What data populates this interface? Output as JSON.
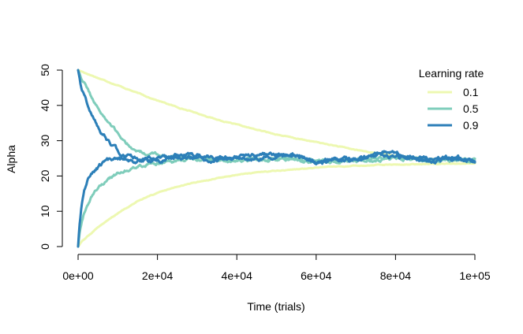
{
  "chart_data": {
    "type": "line",
    "title": "",
    "xlabel": "Time (trials)",
    "ylabel": "Alpha",
    "xlim": [
      0,
      100000
    ],
    "ylim": [
      0,
      50
    ],
    "x_ticks": [
      0,
      20000,
      40000,
      60000,
      80000,
      100000
    ],
    "x_tick_labels": [
      "0e+00",
      "2e+04",
      "4e+04",
      "6e+04",
      "8e+04",
      "1e+05"
    ],
    "y_ticks": [
      0,
      10,
      20,
      30,
      40,
      50
    ],
    "y_tick_labels": [
      "0",
      "10",
      "20",
      "30",
      "40",
      "50"
    ],
    "grid": false,
    "legend": {
      "title": "Learning rate",
      "position": "top-right",
      "entries": [
        {
          "label": "0.1",
          "color": "#edf8b1"
        },
        {
          "label": "0.5",
          "color": "#7fcdbb"
        },
        {
          "label": "0.9",
          "color": "#2c7fb8"
        }
      ]
    },
    "series": [
      {
        "name": "0.1",
        "color": "#edf8b1",
        "start": 50,
        "x": [
          0,
          5000,
          10000,
          15000,
          20000,
          25000,
          30000,
          35000,
          40000,
          45000,
          50000,
          55000,
          60000,
          65000,
          70000,
          75000,
          80000,
          85000,
          90000,
          95000,
          100000
        ],
        "values": [
          50,
          47.8,
          45.7,
          43.5,
          41.4,
          39.5,
          37.8,
          36.0,
          34.5,
          33.1,
          31.8,
          30.6,
          29.6,
          28.5,
          27.4,
          26.5,
          25.7,
          25.2,
          24.8,
          24.4,
          24.0
        ],
        "noise": 0.15
      },
      {
        "name": "0.1",
        "color": "#edf8b1",
        "start": 0,
        "x": [
          0,
          1000,
          3000,
          5000,
          7500,
          10000,
          15000,
          20000,
          25000,
          30000,
          35000,
          40000,
          45000,
          50000,
          55000,
          60000,
          65000,
          70000,
          75000,
          80000,
          85000,
          90000,
          95000,
          100000
        ],
        "values": [
          0,
          1.5,
          3.5,
          5.5,
          7.5,
          9.5,
          12.8,
          15.2,
          16.9,
          18.2,
          19.3,
          20.3,
          21.0,
          21.5,
          21.9,
          22.3,
          22.6,
          22.8,
          23.0,
          23.2,
          23.3,
          23.4,
          23.5,
          23.6
        ],
        "noise": 0.15
      },
      {
        "name": "0.5",
        "color": "#7fcdbb",
        "start": 50,
        "x": [
          0,
          1000,
          2000,
          4000,
          6000,
          8000,
          10000,
          12000,
          14000,
          16000,
          18000,
          20000,
          25000,
          30000,
          40000,
          50000,
          60000,
          70000,
          80000,
          90000,
          100000
        ],
        "values": [
          50,
          47.5,
          45.5,
          41.0,
          37.5,
          34.5,
          32.0,
          29.5,
          27.5,
          26.8,
          26.3,
          25.8,
          25.3,
          25.0,
          24.6,
          24.8,
          24.3,
          24.6,
          25.2,
          24.5,
          24.4
        ],
        "noise": 0.6
      },
      {
        "name": "0.5",
        "color": "#7fcdbb",
        "start": 0,
        "x": [
          0,
          500,
          1500,
          3000,
          5000,
          7500,
          10000,
          12500,
          15000,
          20000,
          25000,
          30000,
          40000,
          50000,
          60000,
          70000,
          80000,
          90000,
          100000
        ],
        "values": [
          0,
          5.0,
          9.5,
          13.5,
          16.5,
          19.0,
          20.8,
          22.0,
          22.8,
          23.6,
          24.2,
          24.6,
          24.5,
          24.7,
          24.0,
          24.5,
          25.0,
          24.3,
          24.2
        ],
        "noise": 0.6
      },
      {
        "name": "0.9",
        "color": "#2c7fb8",
        "start": 50,
        "x": [
          0,
          500,
          1000,
          2000,
          3000,
          4500,
          6000,
          8000,
          10000,
          12000,
          14000,
          17000,
          20000,
          25000,
          30000,
          35000,
          40000,
          45000,
          50000,
          55000,
          60000,
          65000,
          70000,
          75000,
          78000,
          82000,
          85000,
          90000,
          95000,
          100000
        ],
        "values": [
          50,
          47.0,
          44.5,
          41.5,
          38.5,
          35.0,
          32.0,
          29.0,
          27.0,
          25.8,
          25.3,
          24.6,
          24.9,
          25.4,
          25.8,
          24.8,
          25.2,
          25.6,
          26.2,
          25.6,
          24.2,
          24.6,
          25.3,
          26.0,
          27.2,
          26.0,
          24.8,
          24.7,
          24.9,
          24.6
        ],
        "noise": 0.8
      },
      {
        "name": "0.9",
        "color": "#2c7fb8",
        "start": 0,
        "x": [
          0,
          300,
          800,
          1500,
          2500,
          4000,
          5500,
          7000,
          9000,
          11000,
          14000,
          17000,
          20000,
          25000,
          30000,
          35000,
          40000,
          45000,
          50000,
          55000,
          60000,
          65000,
          70000,
          75000,
          80000,
          85000,
          90000,
          95000,
          100000
        ],
        "values": [
          0,
          5.5,
          10.5,
          15.0,
          18.5,
          21.0,
          22.8,
          23.8,
          24.6,
          24.4,
          23.9,
          24.7,
          24.2,
          25.6,
          25.2,
          24.8,
          25.0,
          24.6,
          25.8,
          26.2,
          24.0,
          24.4,
          24.2,
          25.6,
          25.4,
          24.6,
          24.5,
          24.9,
          24.4
        ],
        "noise": 0.8
      }
    ]
  }
}
